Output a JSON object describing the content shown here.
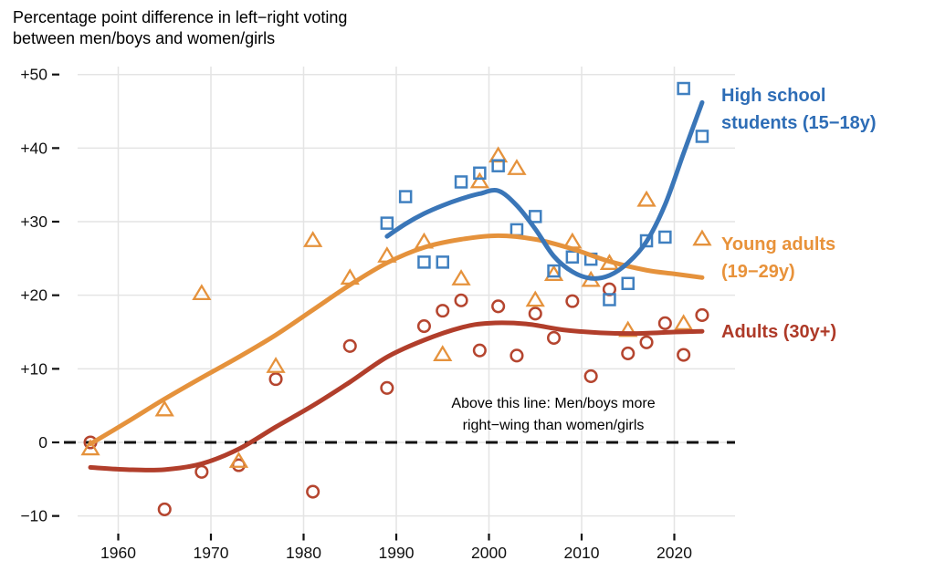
{
  "title": {
    "line1": "Percentage point difference in left−right voting",
    "line2": "between men/boys and women/girls"
  },
  "annotation": {
    "line1": "Above this line: Men/boys more",
    "line2": "right−wing than women/girls"
  },
  "colors": {
    "high_school": "#3a76b8",
    "young_adults": "#e5923c",
    "adults": "#b13e2b",
    "gridline": "#e4e4e4",
    "axis_text": "#111111",
    "zero_line": "#111111"
  },
  "chart_data": {
    "type": "scatter",
    "title": "Percentage point difference in left−right voting between men/boys and women/girls",
    "xlabel": "",
    "ylabel": "",
    "xlim": [
      1955.6,
      2025.6
    ],
    "ylim": [
      -12.4,
      50.8
    ],
    "grid": true,
    "legend_position": "right-inline",
    "x_ticks": [
      1960,
      1970,
      1980,
      1990,
      2000,
      2010,
      2020
    ],
    "y_ticks": [
      {
        "value": 50,
        "label": "+50"
      },
      {
        "value": 40,
        "label": "+40"
      },
      {
        "value": 30,
        "label": "+30"
      },
      {
        "value": 20,
        "label": "+20"
      },
      {
        "value": 10,
        "label": "+10"
      },
      {
        "value": 0,
        "label": "0"
      },
      {
        "value": -10,
        "label": "−10"
      }
    ],
    "zero_line": {
      "value": 0,
      "style": "dashed",
      "color": "#111111"
    },
    "series": [
      {
        "name": "adults",
        "label": "Adults (30y+)",
        "label_lines": [
          "Adults (30y+)"
        ],
        "marker": "circle",
        "color": "#b5452f",
        "line_color": "#b13e2b",
        "points": [
          [
            1957,
            0.0
          ],
          [
            1965,
            -9.1
          ],
          [
            1969,
            -4.0
          ],
          [
            1973,
            -3.1
          ],
          [
            1977,
            8.6
          ],
          [
            1981,
            -6.7
          ],
          [
            1985,
            13.1
          ],
          [
            1989,
            7.4
          ],
          [
            1993,
            15.8
          ],
          [
            1995,
            17.9
          ],
          [
            1997,
            19.3
          ],
          [
            1999,
            12.5
          ],
          [
            2001,
            18.5
          ],
          [
            2003,
            11.8
          ],
          [
            2005,
            17.5
          ],
          [
            2007,
            14.2
          ],
          [
            2009,
            19.2
          ],
          [
            2011,
            9.0
          ],
          [
            2013,
            20.8
          ],
          [
            2015,
            12.1
          ],
          [
            2017,
            13.6
          ],
          [
            2019,
            16.2
          ],
          [
            2021,
            11.9
          ],
          [
            2023,
            17.3
          ]
        ],
        "trend": [
          [
            1957,
            -3.4
          ],
          [
            1961,
            -3.7
          ],
          [
            1965,
            -3.7
          ],
          [
            1969,
            -2.9
          ],
          [
            1973,
            -0.9
          ],
          [
            1977,
            2.1
          ],
          [
            1981,
            5.0
          ],
          [
            1985,
            8.2
          ],
          [
            1989,
            11.6
          ],
          [
            1993,
            13.9
          ],
          [
            1997,
            15.6
          ],
          [
            2000,
            16.2
          ],
          [
            2004,
            16.1
          ],
          [
            2008,
            15.3
          ],
          [
            2012,
            14.9
          ],
          [
            2016,
            14.8
          ],
          [
            2020,
            15.0
          ],
          [
            2023,
            15.1
          ]
        ]
      },
      {
        "name": "young_adults",
        "label": "Young adults (19−29y)",
        "label_lines": [
          "Young adults",
          "(19−29y)"
        ],
        "marker": "triangle",
        "color": "#e5923c",
        "line_color": "#e5923c",
        "points": [
          [
            1957,
            -0.8
          ],
          [
            1965,
            4.5
          ],
          [
            1969,
            20.3
          ],
          [
            1973,
            -2.5
          ],
          [
            1977,
            10.4
          ],
          [
            1981,
            27.5
          ],
          [
            1985,
            22.4
          ],
          [
            1989,
            25.4
          ],
          [
            1993,
            27.3
          ],
          [
            1995,
            12.0
          ],
          [
            1997,
            22.3
          ],
          [
            1999,
            35.5
          ],
          [
            2001,
            39.0
          ],
          [
            2003,
            37.3
          ],
          [
            2005,
            19.4
          ],
          [
            2007,
            22.9
          ],
          [
            2009,
            27.3
          ],
          [
            2011,
            22.1
          ],
          [
            2013,
            24.4
          ],
          [
            2015,
            15.3
          ],
          [
            2017,
            33.0
          ],
          [
            2021,
            16.2
          ],
          [
            2023,
            27.7
          ]
        ],
        "trend": [
          [
            1957,
            -0.2
          ],
          [
            1961,
            2.8
          ],
          [
            1965,
            5.9
          ],
          [
            1969,
            8.8
          ],
          [
            1973,
            11.6
          ],
          [
            1977,
            14.6
          ],
          [
            1981,
            18.0
          ],
          [
            1985,
            21.4
          ],
          [
            1989,
            24.4
          ],
          [
            1993,
            26.5
          ],
          [
            1997,
            27.6
          ],
          [
            2001,
            28.1
          ],
          [
            2005,
            27.6
          ],
          [
            2009,
            26.3
          ],
          [
            2013,
            24.6
          ],
          [
            2017,
            23.4
          ],
          [
            2020,
            22.9
          ],
          [
            2023,
            22.4
          ]
        ]
      },
      {
        "name": "high_school",
        "label": "High school students (15−18y)",
        "label_lines": [
          "High school",
          "students (15−18y)"
        ],
        "marker": "square",
        "color": "#4080c0",
        "line_color": "#3a76b8",
        "points": [
          [
            1989,
            29.8
          ],
          [
            1991,
            33.4
          ],
          [
            1993,
            24.5
          ],
          [
            1995,
            24.5
          ],
          [
            1997,
            35.4
          ],
          [
            1999,
            36.6
          ],
          [
            2001,
            37.6
          ],
          [
            2003,
            28.9
          ],
          [
            2005,
            30.7
          ],
          [
            2007,
            23.3
          ],
          [
            2009,
            25.2
          ],
          [
            2011,
            24.9
          ],
          [
            2013,
            19.4
          ],
          [
            2015,
            21.6
          ],
          [
            2017,
            27.4
          ],
          [
            2019,
            27.9
          ],
          [
            2021,
            48.1
          ],
          [
            2023,
            41.6
          ]
        ],
        "trend": [
          [
            1989,
            28.0
          ],
          [
            1991,
            29.7
          ],
          [
            1993,
            31.1
          ],
          [
            1995,
            32.2
          ],
          [
            1997,
            33.1
          ],
          [
            1999,
            33.8
          ],
          [
            2001,
            34.2
          ],
          [
            2003,
            32.2
          ],
          [
            2005,
            29.0
          ],
          [
            2007,
            25.3
          ],
          [
            2009,
            23.2
          ],
          [
            2011,
            22.3
          ],
          [
            2013,
            22.7
          ],
          [
            2015,
            24.4
          ],
          [
            2017,
            27.3
          ],
          [
            2019,
            32.3
          ],
          [
            2021,
            39.3
          ],
          [
            2023,
            46.2
          ]
        ]
      }
    ]
  }
}
